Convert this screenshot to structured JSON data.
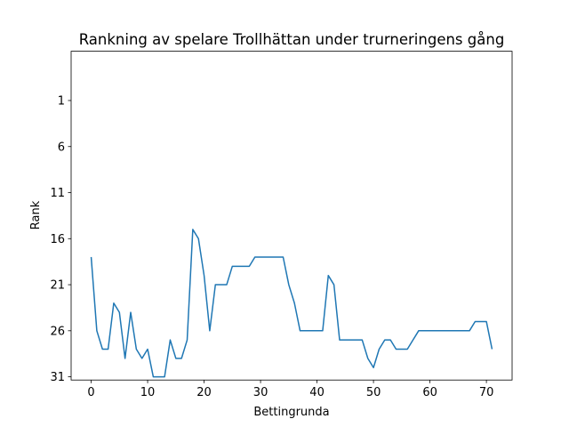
{
  "chart_data": {
    "type": "line",
    "title": "Rankning av spelare Trollhättan under trurneringens gång",
    "xlabel": "Bettingrunda",
    "ylabel": "Rank",
    "xlim": [
      -3.55,
      74.55
    ],
    "ylim": [
      31.35,
      -4.35
    ],
    "y_inverted": true,
    "grid": false,
    "xticks": [
      0,
      10,
      20,
      30,
      40,
      50,
      60,
      70
    ],
    "yticks": [
      1,
      6,
      11,
      16,
      21,
      26,
      31
    ],
    "series": [
      {
        "color": "#1f77b4",
        "x": [
          0,
          1,
          2,
          3,
          4,
          5,
          6,
          7,
          8,
          9,
          10,
          11,
          12,
          13,
          14,
          15,
          16,
          17,
          18,
          19,
          20,
          21,
          22,
          23,
          24,
          25,
          26,
          27,
          28,
          29,
          30,
          31,
          32,
          33,
          34,
          35,
          36,
          37,
          38,
          39,
          40,
          41,
          42,
          43,
          44,
          45,
          46,
          47,
          48,
          49,
          50,
          51,
          52,
          53,
          54,
          55,
          56,
          57,
          58,
          59,
          60,
          61,
          62,
          63,
          64,
          65,
          66,
          67,
          68,
          69,
          70,
          71
        ],
        "y": [
          18,
          26,
          28,
          28,
          23,
          24,
          29,
          24,
          28,
          29,
          28,
          31,
          31,
          31,
          27,
          29,
          29,
          27,
          15,
          16,
          20,
          26,
          21,
          21,
          21,
          19,
          19,
          19,
          19,
          18,
          18,
          18,
          18,
          18,
          18,
          21,
          23,
          26,
          26,
          26,
          26,
          26,
          20,
          21,
          27,
          27,
          27,
          27,
          27,
          29,
          30,
          28,
          27,
          27,
          28,
          28,
          28,
          27,
          26,
          26,
          26,
          26,
          26,
          26,
          26,
          26,
          26,
          26,
          25,
          25,
          25,
          28
        ]
      }
    ]
  }
}
